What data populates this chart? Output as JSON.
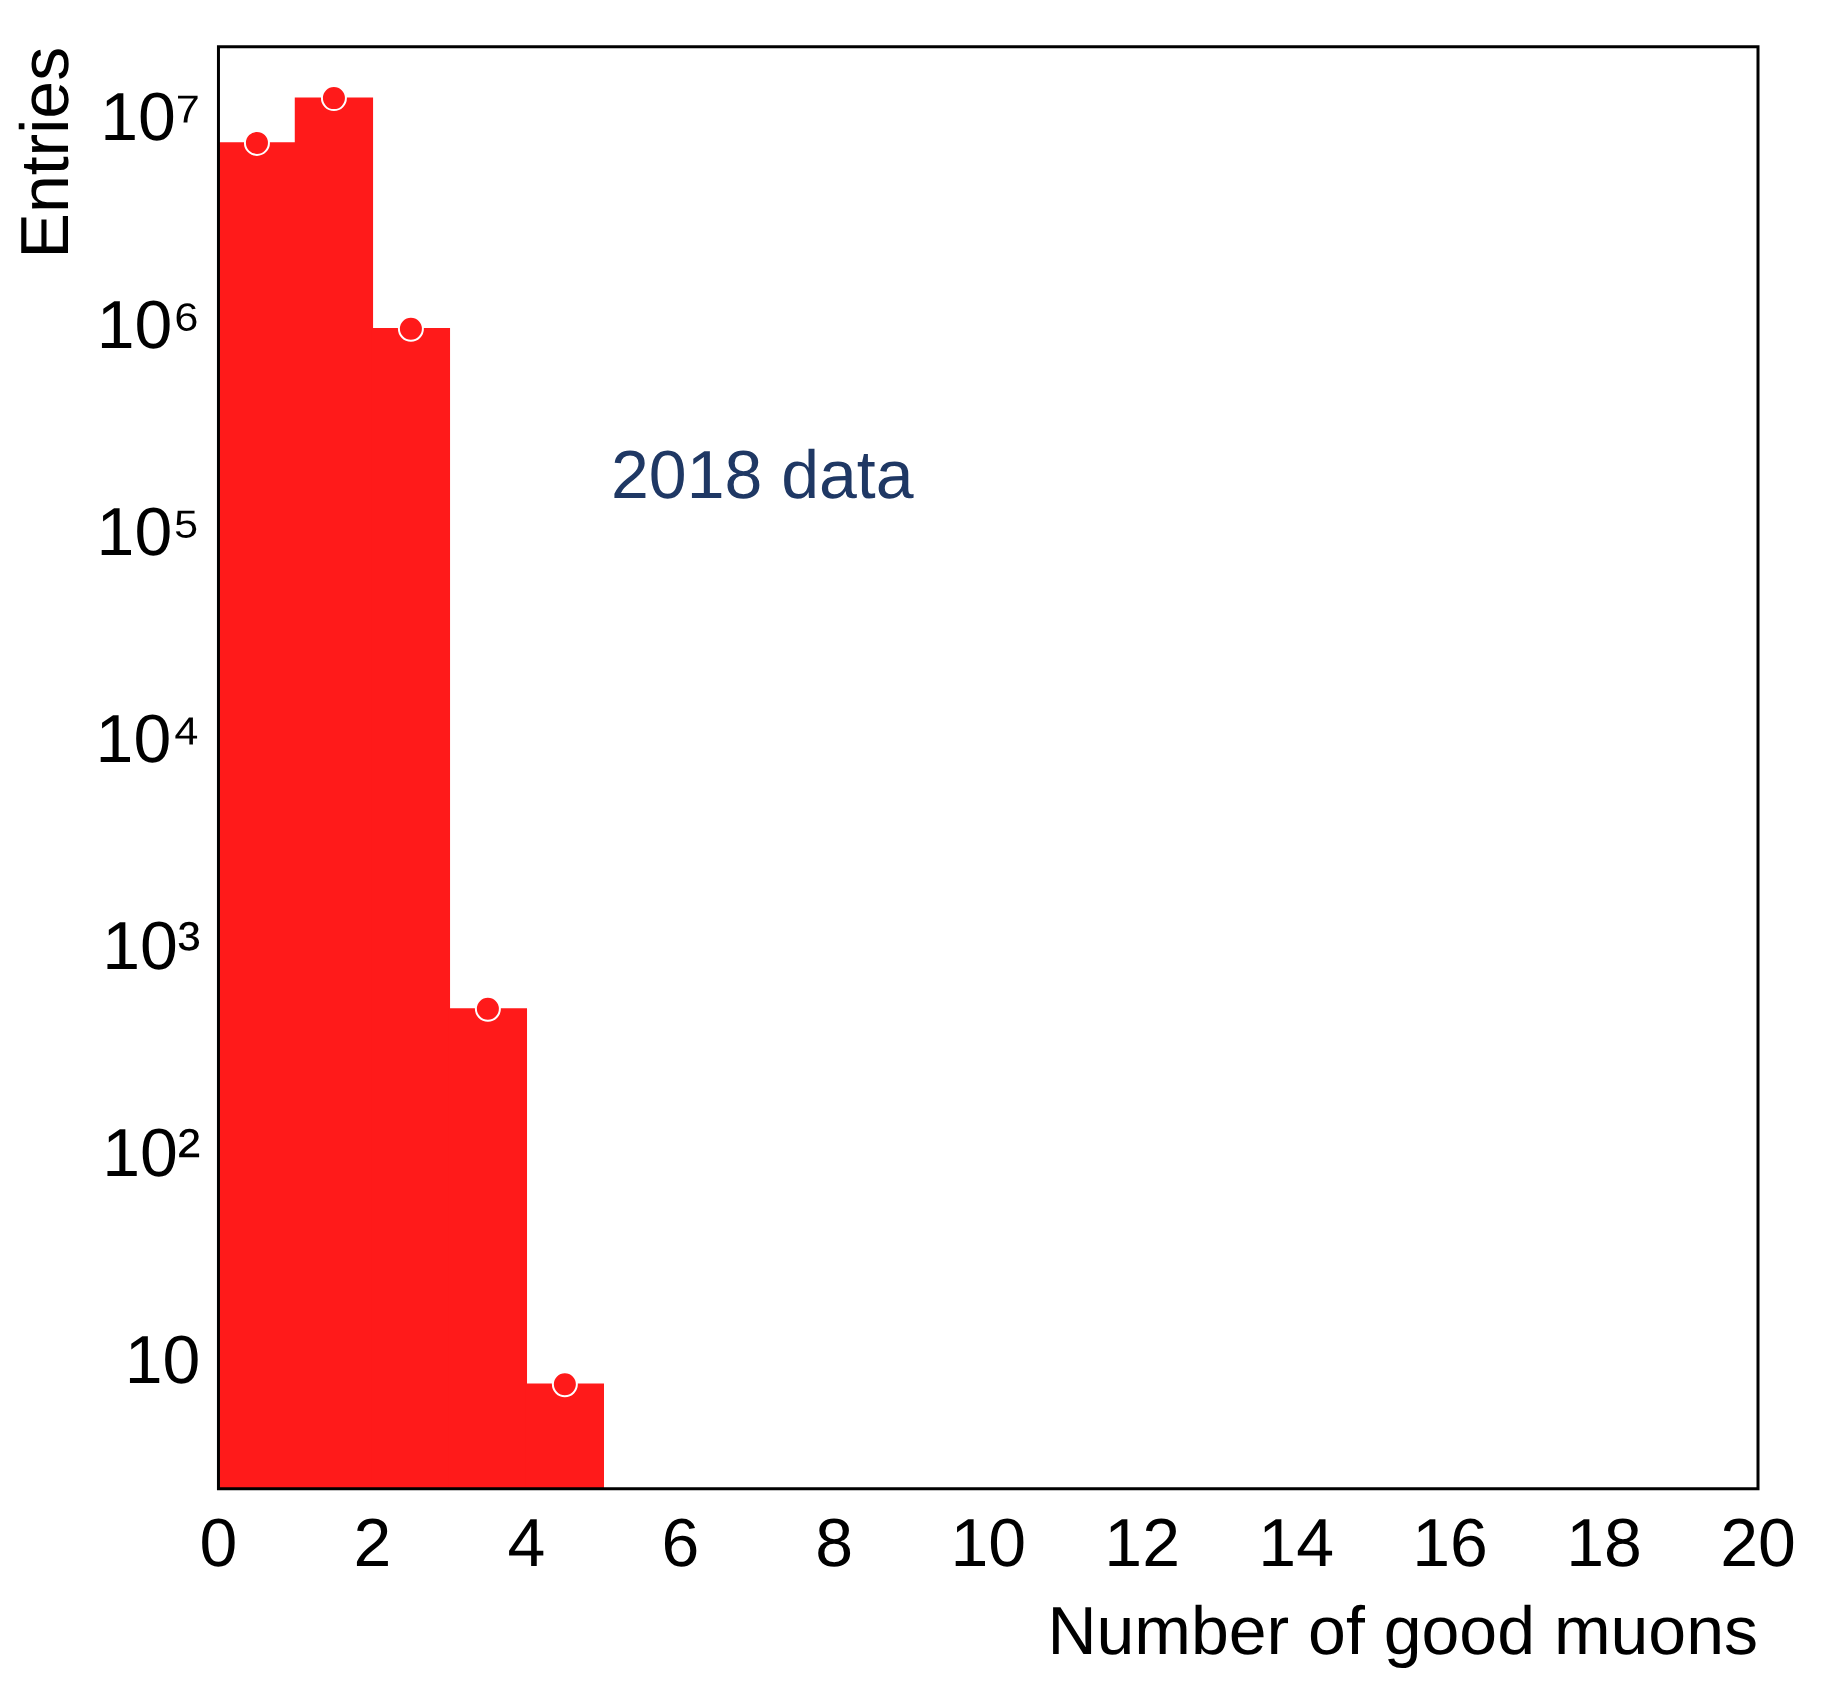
{
  "chart_data": {
    "type": "histogram",
    "xlabel": "Number of good muons",
    "ylabel": "Entries",
    "annotations": [
      "2018 data"
    ],
    "bins": [
      0,
      1,
      2,
      3,
      4,
      5,
      6,
      7,
      8,
      9,
      10,
      11,
      12,
      13,
      14,
      15,
      16,
      17,
      18,
      19,
      20
    ],
    "series": [
      {
        "color": "#ff1a1a",
        "values": [
          7900000,
          13000000,
          1000000,
          520,
          8,
          null,
          null,
          null,
          null,
          null,
          null,
          null,
          null,
          null,
          null,
          null,
          null,
          null,
          null,
          null
        ]
      },
      {
        "type": "scatter",
        "color": "#ff1a1a",
        "x": [
          0.5,
          1.5,
          2.5,
          3.5,
          4.5
        ],
        "values": [
          7900000,
          13000000,
          1000000,
          520,
          8
        ]
      }
    ],
    "log": "y",
    "marker": "circle",
    "grid": false,
    "legend": false,
    "xlim": [
      0,
      20
    ],
    "xticks": [
      0,
      2,
      4,
      6,
      8,
      10,
      12,
      14,
      16,
      18,
      20
    ],
    "ylim": [
      2.5,
      23000000
    ],
    "yticks": [
      10,
      {
        "value": 100,
        "label": "10²"
      },
      {
        "value": 1000,
        "label": "10³"
      },
      {
        "value": 10000,
        "label": "10⁴"
      },
      {
        "value": 100000,
        "label": "10⁵"
      },
      {
        "value": 1000000,
        "label": "10⁶"
      },
      {
        "value": 10000000,
        "label": "10⁷"
      }
    ]
  }
}
